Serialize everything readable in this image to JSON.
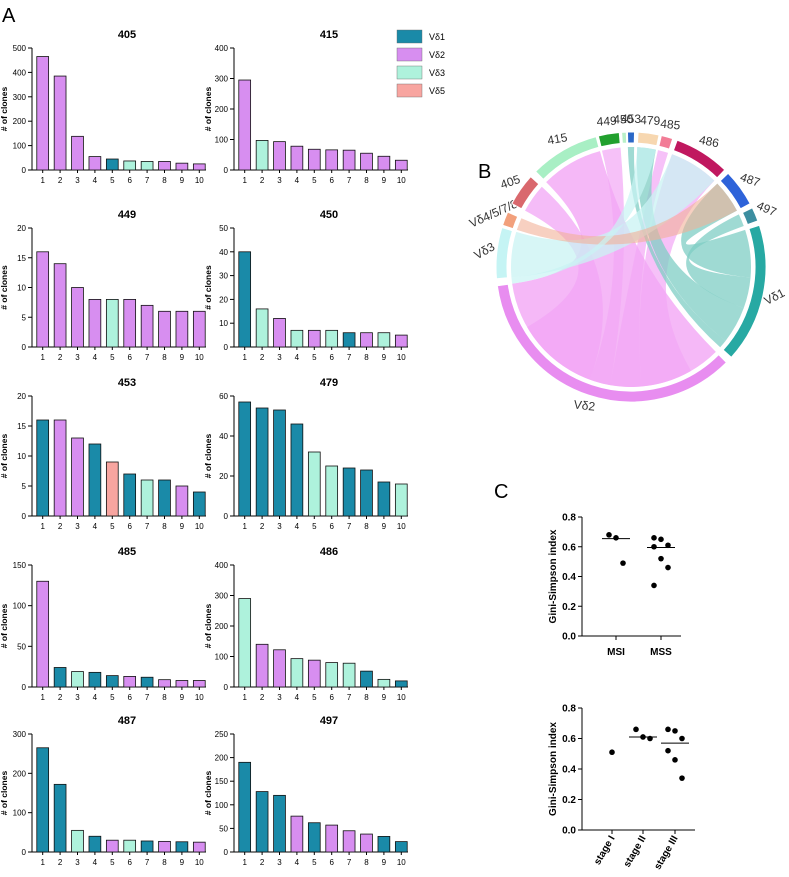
{
  "panels": {
    "a": "A",
    "b": "B",
    "c": "C"
  },
  "legend": [
    {
      "label": "Vδ1",
      "color": "#1a8aa8"
    },
    {
      "label": "Vδ2",
      "color": "#d78ef0"
    },
    {
      "label": "Vδ3",
      "color": "#aef2dc"
    },
    {
      "label": "Vδ5",
      "color": "#f8a5a0"
    }
  ],
  "colors": {
    "Vd1": "#1a8aa8",
    "Vd2": "#d78ef0",
    "Vd3": "#aef2dc",
    "Vd5": "#f8a5a0"
  },
  "chart_data": [
    {
      "type": "bar",
      "title": "405",
      "ylabel": "# of clones",
      "categories": [
        "1",
        "2",
        "3",
        "4",
        "5",
        "6",
        "7",
        "8",
        "9",
        "10"
      ],
      "values": [
        465,
        385,
        138,
        55,
        45,
        37,
        35,
        35,
        28,
        25
      ],
      "classes": [
        "Vd2",
        "Vd2",
        "Vd2",
        "Vd2",
        "Vd1",
        "Vd3",
        "Vd3",
        "Vd2",
        "Vd2",
        "Vd2"
      ],
      "ylim": [
        0,
        500
      ],
      "yticks": [
        0,
        100,
        200,
        300,
        400,
        500
      ]
    },
    {
      "type": "bar",
      "title": "415",
      "ylabel": "# of clones",
      "categories": [
        "1",
        "2",
        "3",
        "4",
        "5",
        "6",
        "7",
        "8",
        "9",
        "10"
      ],
      "values": [
        295,
        97,
        93,
        78,
        68,
        66,
        65,
        55,
        45,
        32
      ],
      "classes": [
        "Vd2",
        "Vd3",
        "Vd2",
        "Vd2",
        "Vd2",
        "Vd2",
        "Vd2",
        "Vd2",
        "Vd2",
        "Vd2"
      ],
      "ylim": [
        0,
        400
      ],
      "yticks": [
        0,
        100,
        200,
        300,
        400
      ]
    },
    {
      "type": "bar",
      "title": "449",
      "ylabel": "# of clones",
      "categories": [
        "1",
        "2",
        "3",
        "4",
        "5",
        "6",
        "7",
        "8",
        "9",
        "10"
      ],
      "values": [
        16,
        14,
        10,
        8,
        8,
        8,
        7,
        6,
        6,
        6
      ],
      "classes": [
        "Vd2",
        "Vd2",
        "Vd2",
        "Vd2",
        "Vd3",
        "Vd2",
        "Vd2",
        "Vd2",
        "Vd2",
        "Vd2"
      ],
      "ylim": [
        0,
        20
      ],
      "yticks": [
        0,
        5,
        10,
        15,
        20
      ]
    },
    {
      "type": "bar",
      "title": "450",
      "ylabel": "# of clones",
      "categories": [
        "1",
        "2",
        "3",
        "4",
        "5",
        "6",
        "7",
        "8",
        "9",
        "10"
      ],
      "values": [
        40,
        16,
        12,
        7,
        7,
        7,
        6,
        6,
        6,
        5
      ],
      "classes": [
        "Vd1",
        "Vd3",
        "Vd2",
        "Vd3",
        "Vd2",
        "Vd3",
        "Vd1",
        "Vd2",
        "Vd3",
        "Vd2"
      ],
      "ylim": [
        0,
        50
      ],
      "yticks": [
        0,
        10,
        20,
        30,
        40,
        50
      ]
    },
    {
      "type": "bar",
      "title": "453",
      "ylabel": "# of clones",
      "categories": [
        "1",
        "2",
        "3",
        "4",
        "5",
        "6",
        "7",
        "8",
        "9",
        "10"
      ],
      "values": [
        16,
        16,
        13,
        12,
        9,
        7,
        6,
        6,
        5,
        4
      ],
      "classes": [
        "Vd1",
        "Vd2",
        "Vd2",
        "Vd1",
        "Vd5",
        "Vd1",
        "Vd3",
        "Vd1",
        "Vd2",
        "Vd1"
      ],
      "ylim": [
        0,
        20
      ],
      "yticks": [
        0,
        5,
        10,
        15,
        20
      ]
    },
    {
      "type": "bar",
      "title": "479",
      "ylabel": "# of clones",
      "categories": [
        "1",
        "2",
        "3",
        "4",
        "5",
        "6",
        "7",
        "8",
        "9",
        "10"
      ],
      "values": [
        57,
        54,
        53,
        46,
        32,
        25,
        24,
        23,
        17,
        16
      ],
      "classes": [
        "Vd1",
        "Vd1",
        "Vd1",
        "Vd1",
        "Vd3",
        "Vd3",
        "Vd1",
        "Vd1",
        "Vd1",
        "Vd3"
      ],
      "ylim": [
        0,
        60
      ],
      "yticks": [
        0,
        20,
        40,
        60
      ]
    },
    {
      "type": "bar",
      "title": "485",
      "ylabel": "# of clones",
      "categories": [
        "1",
        "2",
        "3",
        "4",
        "5",
        "6",
        "7",
        "8",
        "9",
        "10"
      ],
      "values": [
        130,
        24,
        19,
        18,
        14,
        13,
        12,
        9,
        8,
        8
      ],
      "classes": [
        "Vd2",
        "Vd1",
        "Vd3",
        "Vd1",
        "Vd1",
        "Vd2",
        "Vd1",
        "Vd2",
        "Vd2",
        "Vd2"
      ],
      "ylim": [
        0,
        150
      ],
      "yticks": [
        0,
        50,
        100,
        150
      ]
    },
    {
      "type": "bar",
      "title": "486",
      "ylabel": "# of clones",
      "categories": [
        "1",
        "2",
        "3",
        "4",
        "5",
        "6",
        "7",
        "8",
        "9",
        "10"
      ],
      "values": [
        290,
        140,
        122,
        93,
        88,
        80,
        78,
        52,
        25,
        20
      ],
      "classes": [
        "Vd3",
        "Vd2",
        "Vd2",
        "Vd3",
        "Vd2",
        "Vd3",
        "Vd3",
        "Vd1",
        "Vd3",
        "Vd1"
      ],
      "ylim": [
        0,
        400
      ],
      "yticks": [
        0,
        100,
        200,
        300,
        400
      ]
    },
    {
      "type": "bar",
      "title": "487",
      "ylabel": "# of clones",
      "categories": [
        "1",
        "2",
        "3",
        "4",
        "5",
        "6",
        "7",
        "8",
        "9",
        "10"
      ],
      "values": [
        265,
        172,
        55,
        40,
        30,
        30,
        28,
        27,
        26,
        25
      ],
      "classes": [
        "Vd1",
        "Vd1",
        "Vd3",
        "Vd1",
        "Vd2",
        "Vd3",
        "Vd1",
        "Vd2",
        "Vd1",
        "Vd2"
      ],
      "ylim": [
        0,
        300
      ],
      "yticks": [
        0,
        100,
        200,
        300
      ]
    },
    {
      "type": "bar",
      "title": "497",
      "ylabel": "# of clones",
      "categories": [
        "1",
        "2",
        "3",
        "4",
        "5",
        "6",
        "7",
        "8",
        "9",
        "10"
      ],
      "values": [
        190,
        128,
        120,
        76,
        62,
        57,
        45,
        38,
        33,
        22
      ],
      "classes": [
        "Vd1",
        "Vd1",
        "Vd1",
        "Vd2",
        "Vd1",
        "Vd2",
        "Vd2",
        "Vd2",
        "Vd1",
        "Vd1"
      ],
      "ylim": [
        0,
        250
      ],
      "yticks": [
        0,
        50,
        100,
        150,
        200,
        250
      ]
    },
    {
      "type": "chord",
      "groups": [
        {
          "label": "449",
          "color": "#22a02e"
        },
        {
          "label": "450",
          "color": "#b9f0c8"
        },
        {
          "label": "453",
          "color": "#2b68c7"
        },
        {
          "label": "479",
          "color": "#f7d7b0"
        },
        {
          "label": "485",
          "color": "#f27c96"
        },
        {
          "label": "486",
          "color": "#c0185f"
        },
        {
          "label": "487",
          "color": "#2e63d9"
        },
        {
          "label": "497",
          "color": "#3c8ea0"
        },
        {
          "label": "Vδ1",
          "color": "#27a9a3"
        },
        {
          "label": "Vδ2",
          "color": "#e88df0"
        },
        {
          "label": "Vδ3",
          "color": "#c5f4f4"
        },
        {
          "label": "Vδ4/5/7/8",
          "color": "#f2a07c"
        },
        {
          "label": "405",
          "color": "#d9686d"
        },
        {
          "label": "415",
          "color": "#a8efc4"
        }
      ]
    },
    {
      "type": "scatter",
      "ylabel": "Gini-Simpson index",
      "categories": [
        "MSI",
        "MSS"
      ],
      "ylim": [
        0,
        0.8
      ],
      "yticks": [
        "0.0",
        "0.2",
        "0.4",
        "0.6",
        "0.8"
      ],
      "points": [
        [
          0.68,
          0.66,
          0.49
        ],
        [
          0.66,
          0.65,
          0.61,
          0.6,
          0.52,
          0.46,
          0.34
        ]
      ],
      "medians": [
        0.655,
        0.595
      ]
    },
    {
      "type": "scatter",
      "ylabel": "Gini-Simpson index",
      "categories": [
        "stage I",
        "stage II",
        "stage III"
      ],
      "ylim": [
        0,
        0.8
      ],
      "yticks": [
        "0.0",
        "0.2",
        "0.4",
        "0.6",
        "0.8"
      ],
      "points": [
        [
          0.51
        ],
        [
          0.66,
          0.61,
          0.6
        ],
        [
          0.66,
          0.65,
          0.6,
          0.52,
          0.46,
          0.34
        ]
      ],
      "medians": [
        null,
        0.61,
        0.57
      ]
    }
  ]
}
